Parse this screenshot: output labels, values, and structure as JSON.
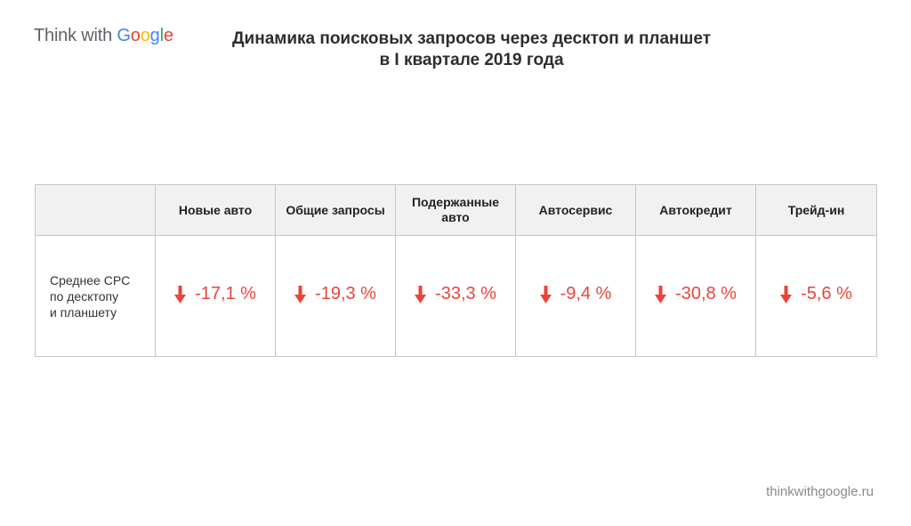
{
  "logo": {
    "prefix": "Think with ",
    "google_letters": [
      {
        "ch": "G",
        "color": "#4285F4"
      },
      {
        "ch": "o",
        "color": "#EA4335"
      },
      {
        "ch": "o",
        "color": "#FBBC05"
      },
      {
        "ch": "g",
        "color": "#4285F4"
      },
      {
        "ch": "l",
        "color": "#34A853"
      },
      {
        "ch": "e",
        "color": "#EA4335"
      }
    ]
  },
  "title": {
    "line1": "Динамика поисковых запросов через десктоп и планшет",
    "line2": "в I квартале 2019 года"
  },
  "footer": {
    "url": "thinkwithgoogle.ru"
  },
  "colors": {
    "decrease": "#e8453c",
    "header_bg": "#f1f1f1",
    "border": "#c6c6c6"
  },
  "chart_data": {
    "type": "table",
    "title": "Динамика поисковых запросов через десктоп и планшет в I квартале 2019 года",
    "row_label_lines": [
      "Среднее CPC",
      "по десктопу",
      "и планшету"
    ],
    "columns": [
      {
        "header_lines": [
          "Новые авто"
        ],
        "value": "-17,1 %",
        "direction": "down"
      },
      {
        "header_lines": [
          "Общие запросы"
        ],
        "value": "-19,3 %",
        "direction": "down"
      },
      {
        "header_lines": [
          "Подержанные",
          "авто"
        ],
        "value": "-33,3 %",
        "direction": "down"
      },
      {
        "header_lines": [
          "Автосервис"
        ],
        "value": "-9,4 %",
        "direction": "down"
      },
      {
        "header_lines": [
          "Автокредит"
        ],
        "value": "-30,8 %",
        "direction": "down"
      },
      {
        "header_lines": [
          "Трейд-ин"
        ],
        "value": "-5,6 %",
        "direction": "down"
      }
    ],
    "numeric_values": [
      -17.1,
      -19.3,
      -33.3,
      -9.4,
      -30.8,
      -5.6
    ],
    "unit": "%",
    "arrow_icon": "arrow-down-icon"
  }
}
